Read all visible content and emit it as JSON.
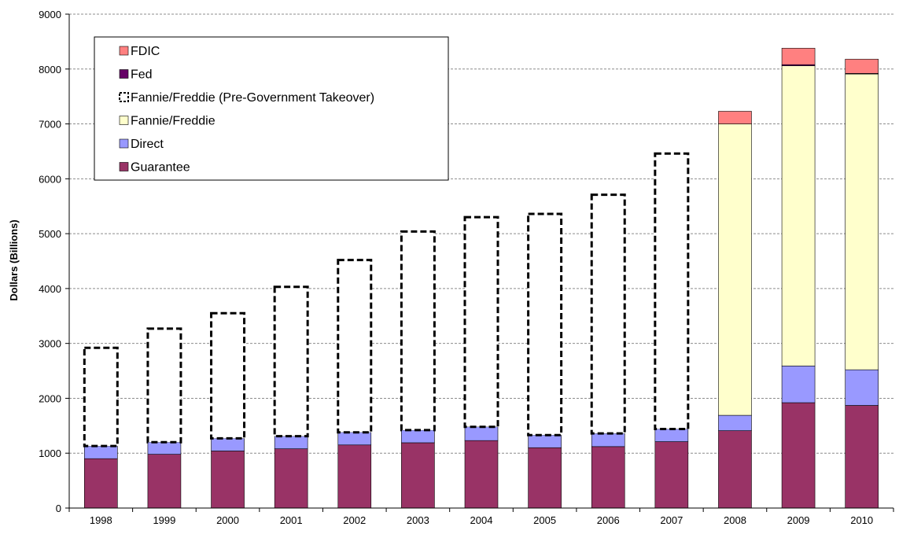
{
  "chart_data": {
    "type": "bar",
    "stacked": true,
    "title": "",
    "xlabel": "",
    "ylabel": "Dollars (Billions)",
    "ylim": [
      0,
      9000
    ],
    "yticks": [
      "0",
      "1000",
      "2000",
      "3000",
      "4000",
      "5000",
      "6000",
      "7000",
      "8000",
      "9000"
    ],
    "grid": true,
    "legend_position": "top-left",
    "categories": [
      "1998",
      "1999",
      "2000",
      "2001",
      "2002",
      "2003",
      "2004",
      "2005",
      "2006",
      "2007",
      "2008",
      "2009",
      "2010"
    ],
    "series": [
      {
        "name": "Guarantee",
        "color": "#993366",
        "style": "solid",
        "values": [
          900,
          980,
          1040,
          1080,
          1150,
          1190,
          1230,
          1100,
          1120,
          1210,
          1410,
          1920,
          1870
        ]
      },
      {
        "name": "Direct",
        "color": "#9999FF",
        "style": "solid",
        "values": [
          230,
          220,
          230,
          230,
          230,
          230,
          250,
          230,
          240,
          230,
          280,
          670,
          650
        ]
      },
      {
        "name": "Fannie/Freddie (Pre-Government Takeover)",
        "color": "#FFFFFF",
        "style": "dashed",
        "values": [
          1790,
          2070,
          2280,
          2720,
          3140,
          3620,
          3820,
          4030,
          4350,
          5020,
          0,
          0,
          0
        ]
      },
      {
        "name": "Fannie/Freddie",
        "color": "#FFFFCC",
        "style": "solid",
        "values": [
          0,
          0,
          0,
          0,
          0,
          0,
          0,
          0,
          0,
          0,
          5310,
          5470,
          5390
        ]
      },
      {
        "name": "Fed",
        "color": "#660066",
        "style": "solid",
        "values": [
          0,
          0,
          0,
          0,
          0,
          0,
          0,
          0,
          0,
          0,
          0,
          20,
          10
        ]
      },
      {
        "name": "FDIC",
        "color": "#FF8080",
        "style": "solid",
        "values": [
          0,
          0,
          0,
          0,
          0,
          0,
          0,
          0,
          0,
          0,
          230,
          300,
          260
        ]
      }
    ],
    "legend_order": [
      "FDIC",
      "Fed",
      "Fannie/Freddie (Pre-Government Takeover)",
      "Fannie/Freddie",
      "Direct",
      "Guarantee"
    ]
  }
}
